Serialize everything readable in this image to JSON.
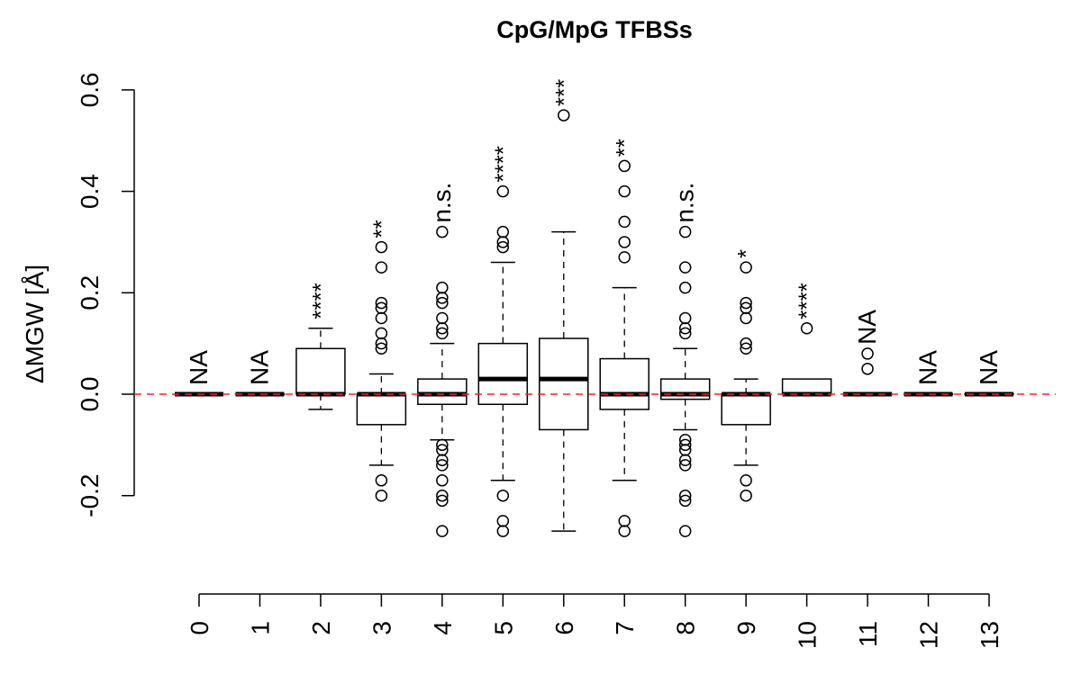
{
  "chart_data": {
    "type": "boxplot",
    "title": "CpG/MpG TFBSs",
    "xlabel": "",
    "ylabel": "ΔMGW [Å]",
    "ylim": [
      -0.2,
      0.6
    ],
    "yticks": [
      "-0.2",
      "0.0",
      "0.2",
      "0.4",
      "0.6"
    ],
    "ytick_values": [
      -0.2,
      0.0,
      0.2,
      0.4,
      0.6
    ],
    "categories": [
      "0",
      "1",
      "2",
      "3",
      "4",
      "5",
      "6",
      "7",
      "8",
      "9",
      "10",
      "11",
      "12",
      "13"
    ],
    "reference_line": {
      "y": 0.0,
      "color": "#ff2020",
      "style": "dashed"
    },
    "colors": {
      "box_stroke": "#000000",
      "box_fill": "#ffffff",
      "ref_line": "#ff2020"
    },
    "groups": [
      {
        "category": "0",
        "lower_whisker": 0.0,
        "q1": 0.0,
        "median": 0.0,
        "q3": 0.0,
        "upper_whisker": 0.0,
        "outliers": [],
        "annotation": "NA"
      },
      {
        "category": "1",
        "lower_whisker": 0.0,
        "q1": 0.0,
        "median": 0.0,
        "q3": 0.0,
        "upper_whisker": 0.0,
        "outliers": [],
        "annotation": "NA"
      },
      {
        "category": "2",
        "lower_whisker": -0.03,
        "q1": 0.0,
        "median": 0.0,
        "q3": 0.09,
        "upper_whisker": 0.13,
        "outliers": [],
        "annotation": "****"
      },
      {
        "category": "3",
        "lower_whisker": -0.14,
        "q1": -0.06,
        "median": 0.0,
        "q3": 0.0,
        "upper_whisker": 0.04,
        "outliers": [
          0.29,
          0.25,
          0.18,
          0.17,
          0.15,
          0.12,
          0.1,
          0.09,
          -0.17,
          -0.2
        ],
        "annotation": "**"
      },
      {
        "category": "4",
        "lower_whisker": -0.09,
        "q1": -0.02,
        "median": 0.0,
        "q3": 0.03,
        "upper_whisker": 0.1,
        "outliers": [
          0.32,
          0.21,
          0.19,
          0.18,
          0.15,
          0.13,
          0.12,
          -0.1,
          -0.11,
          -0.13,
          -0.14,
          -0.17,
          -0.2,
          -0.21,
          -0.27
        ],
        "annotation": "n.s."
      },
      {
        "category": "5",
        "lower_whisker": -0.17,
        "q1": -0.02,
        "median": 0.03,
        "q3": 0.1,
        "upper_whisker": 0.26,
        "outliers": [
          0.4,
          0.32,
          0.3,
          0.29,
          -0.2,
          -0.25,
          -0.27
        ],
        "annotation": "****"
      },
      {
        "category": "6",
        "lower_whisker": -0.27,
        "q1": -0.07,
        "median": 0.03,
        "q3": 0.11,
        "upper_whisker": 0.32,
        "outliers": [
          0.55
        ],
        "annotation": "***"
      },
      {
        "category": "7",
        "lower_whisker": -0.17,
        "q1": -0.03,
        "median": 0.0,
        "q3": 0.07,
        "upper_whisker": 0.21,
        "outliers": [
          0.45,
          0.4,
          0.34,
          0.3,
          0.27,
          -0.25,
          -0.27
        ],
        "annotation": "**"
      },
      {
        "category": "8",
        "lower_whisker": -0.07,
        "q1": -0.01,
        "median": 0.0,
        "q3": 0.03,
        "upper_whisker": 0.09,
        "outliers": [
          0.32,
          0.25,
          0.21,
          0.15,
          0.13,
          0.12,
          -0.09,
          -0.1,
          -0.11,
          -0.13,
          -0.14,
          -0.2,
          -0.21,
          -0.27
        ],
        "annotation": "n.s."
      },
      {
        "category": "9",
        "lower_whisker": -0.14,
        "q1": -0.06,
        "median": 0.0,
        "q3": 0.0,
        "upper_whisker": 0.03,
        "outliers": [
          0.25,
          0.18,
          0.17,
          0.15,
          0.1,
          0.09,
          -0.17,
          -0.2
        ],
        "annotation": "*"
      },
      {
        "category": "10",
        "lower_whisker": 0.0,
        "q1": 0.0,
        "median": 0.0,
        "q3": 0.03,
        "upper_whisker": 0.03,
        "outliers": [
          0.13
        ],
        "annotation": "****"
      },
      {
        "category": "11",
        "lower_whisker": 0.0,
        "q1": 0.0,
        "median": 0.0,
        "q3": 0.0,
        "upper_whisker": 0.0,
        "outliers": [
          0.08,
          0.05
        ],
        "annotation": "NA"
      },
      {
        "category": "12",
        "lower_whisker": 0.0,
        "q1": 0.0,
        "median": 0.0,
        "q3": 0.0,
        "upper_whisker": 0.0,
        "outliers": [],
        "annotation": "NA"
      },
      {
        "category": "13",
        "lower_whisker": 0.0,
        "q1": 0.0,
        "median": 0.0,
        "q3": 0.0,
        "upper_whisker": 0.0,
        "outliers": [],
        "annotation": "NA"
      }
    ]
  }
}
